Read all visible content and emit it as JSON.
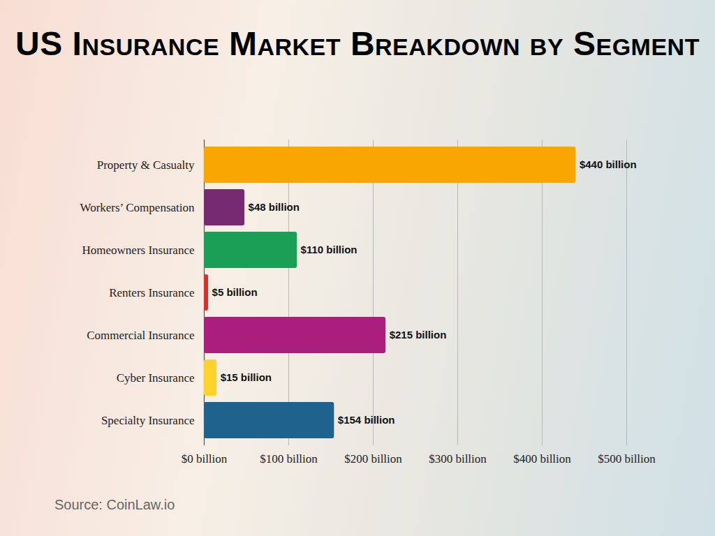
{
  "chart_data": {
    "type": "bar",
    "orientation": "horizontal",
    "title": "US Insurance Market Breakdown by Segment",
    "source": "Source: CoinLaw.io",
    "categories": [
      "Property & Casualty",
      "Workers’ Compensation",
      "Homeowners Insurance",
      "Renters Insurance",
      "Commercial Insurance",
      "Cyber Insurance",
      "Specialty Insurance"
    ],
    "values": [
      440,
      48,
      110,
      5,
      215,
      15,
      154
    ],
    "value_labels": [
      "$440 billion",
      "$48 billion",
      "$110 billion",
      "$5 billion",
      "$215 billion",
      "$15 billion",
      "$154 billion"
    ],
    "colors": [
      "#f9a602",
      "#762a6f",
      "#1b9e55",
      "#d8302a",
      "#ab1f7c",
      "#fdd22f",
      "#1f628e"
    ],
    "xlim": [
      0,
      500
    ],
    "xticks": [
      {
        "value": 0,
        "label": "$0 billion"
      },
      {
        "value": 100,
        "label": "$100 billion"
      },
      {
        "value": 200,
        "label": "$200 billion"
      },
      {
        "value": 300,
        "label": "$300 billion"
      },
      {
        "value": 400,
        "label": "$400 billion"
      },
      {
        "value": 500,
        "label": "$500 billion"
      }
    ],
    "grid": true,
    "data_labels": true
  }
}
